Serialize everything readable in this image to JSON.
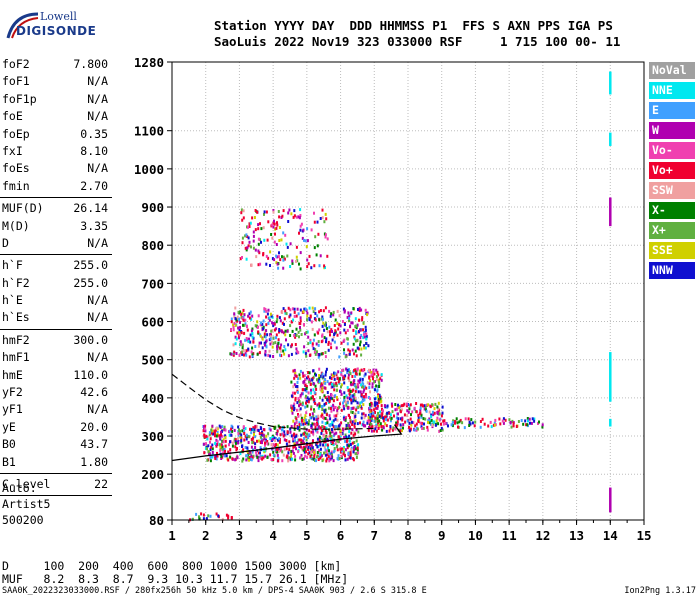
{
  "logo": {
    "line1": "Lowell",
    "line2": "DIGISONDE"
  },
  "header": {
    "line1": "Station YYYY DAY  DDD HHMMSS P1  FFS S AXN PPS IGA PS",
    "line2": "SaoLuis 2022 Nov19 323 033000 RSF     1 715 100 00- 11"
  },
  "params": [
    {
      "k": "foF2",
      "v": "7.800"
    },
    {
      "k": "foF1",
      "v": "N/A"
    },
    {
      "k": "foF1p",
      "v": "N/A"
    },
    {
      "k": "foE",
      "v": "N/A"
    },
    {
      "k": "foEp",
      "v": "0.35"
    },
    {
      "k": "fxI",
      "v": "8.10"
    },
    {
      "k": "foEs",
      "v": "N/A"
    },
    {
      "k": "fmin",
      "v": "2.70"
    },
    {
      "sep": true
    },
    {
      "k": "MUF(D)",
      "v": "26.14"
    },
    {
      "k": "M(D)",
      "v": "3.35"
    },
    {
      "k": "D",
      "v": "N/A"
    },
    {
      "sep": true
    },
    {
      "k": "h`F",
      "v": "255.0"
    },
    {
      "k": "h`F2",
      "v": "255.0"
    },
    {
      "k": "h`E",
      "v": "N/A"
    },
    {
      "k": "h`Es",
      "v": "N/A"
    },
    {
      "sep": true
    },
    {
      "k": "hmF2",
      "v": "300.0"
    },
    {
      "k": "hmF1",
      "v": "N/A"
    },
    {
      "k": "hmE",
      "v": "110.0"
    },
    {
      "k": "yF2",
      "v": "42.6"
    },
    {
      "k": "yF1",
      "v": "N/A"
    },
    {
      "k": "yE",
      "v": "20.0"
    },
    {
      "k": "B0",
      "v": "43.7"
    },
    {
      "k": "B1",
      "v": "1.80"
    },
    {
      "sep": true
    },
    {
      "k": "C-level",
      "v": "22"
    },
    {
      "sep": true
    }
  ],
  "auto": {
    "line1": "Auto:",
    "line2": "Artist5",
    "line3": "500200"
  },
  "legend": [
    {
      "label": "NoVal",
      "color": "#a0a0a0"
    },
    {
      "label": "NNE",
      "color": "#00e8f0"
    },
    {
      "label": "E",
      "color": "#40a0ff"
    },
    {
      "label": "W",
      "color": "#b000b0"
    },
    {
      "label": "Vo-",
      "color": "#f040b0"
    },
    {
      "label": "Vo+",
      "color": "#f00030"
    },
    {
      "label": "SSW",
      "color": "#f0a0a0"
    },
    {
      "label": "X-",
      "color": "#008000"
    },
    {
      "label": "X+",
      "color": "#60b040"
    },
    {
      "label": "SSE",
      "color": "#d0d000"
    },
    {
      "label": "NNW",
      "color": "#1010d0"
    }
  ],
  "muf_table": {
    "line1": "D     100  200  400  600  800 1000 1500 3000 [km]",
    "line2": "MUF   8.2  8.3  8.7  9.3 10.3 11.7 15.7 26.1 [MHz]"
  },
  "footer": {
    "left": "SAA0K_2022323033000.RSF / 280fx256h 50 kHz 5.0 km / DPS-4 SAA0K 903 / 2.6 S 315.8 E",
    "right": "Ion2Png 1.3.17"
  },
  "chart_data": {
    "type": "scatter",
    "xlim": [
      1,
      15
    ],
    "ylim": [
      80,
      1280
    ],
    "x_ticks": [
      1,
      2,
      3,
      4,
      5,
      6,
      7,
      8,
      9,
      10,
      11,
      12,
      13,
      14,
      15
    ],
    "y_ticks": [
      80,
      200,
      300,
      400,
      500,
      600,
      700,
      800,
      900,
      1000,
      1100,
      1280
    ],
    "grid": true,
    "legend_position": "right",
    "profile_curve": [
      [
        1.0,
        236
      ],
      [
        2.0,
        248
      ],
      [
        3.0,
        258
      ],
      [
        4.0,
        268
      ],
      [
        5.0,
        280
      ],
      [
        6.0,
        292
      ],
      [
        7.0,
        300
      ],
      [
        7.8,
        305
      ],
      [
        7.6,
        330
      ]
    ],
    "dashed_curve": [
      [
        1.0,
        462
      ],
      [
        1.5,
        428
      ],
      [
        2.0,
        395
      ],
      [
        2.5,
        368
      ],
      [
        3.0,
        348
      ],
      [
        3.5,
        335
      ],
      [
        4.0,
        325
      ],
      [
        5.0,
        318
      ],
      [
        6.0,
        318
      ],
      [
        7.0,
        320
      ]
    ],
    "clusters": [
      {
        "x": [
          1.9,
          6.5
        ],
        "y": [
          238,
          330
        ],
        "density": 0.85
      },
      {
        "x": [
          4.5,
          7.2
        ],
        "y": [
          330,
          480
        ],
        "density": 0.7
      },
      {
        "x": [
          6.8,
          9.0
        ],
        "y": [
          315,
          390
        ],
        "density": 0.7
      },
      {
        "x": [
          9.0,
          12.0
        ],
        "y": [
          325,
          350
        ],
        "density": 0.5
      },
      {
        "x": [
          2.7,
          6.8
        ],
        "y": [
          510,
          640
        ],
        "density": 0.45
      },
      {
        "x": [
          3.0,
          5.6
        ],
        "y": [
          740,
          900
        ],
        "density": 0.2
      },
      {
        "x": [
          1.5,
          2.9
        ],
        "y": [
          82,
          100
        ],
        "density": 0.4
      }
    ],
    "markers": [
      {
        "x": 14.0,
        "y": [
          1195,
          1255
        ],
        "color": "#00e8f0"
      },
      {
        "x": 14.0,
        "y": [
          1060,
          1095
        ],
        "color": "#00e8f0"
      },
      {
        "x": 14.0,
        "y": [
          850,
          925
        ],
        "color": "#b000b0"
      },
      {
        "x": 14.0,
        "y": [
          390,
          520
        ],
        "color": "#00e8f0"
      },
      {
        "x": 14.0,
        "y": [
          325,
          345
        ],
        "color": "#00e8f0"
      },
      {
        "x": 14.0,
        "y": [
          100,
          165
        ],
        "color": "#b000b0"
      }
    ]
  }
}
